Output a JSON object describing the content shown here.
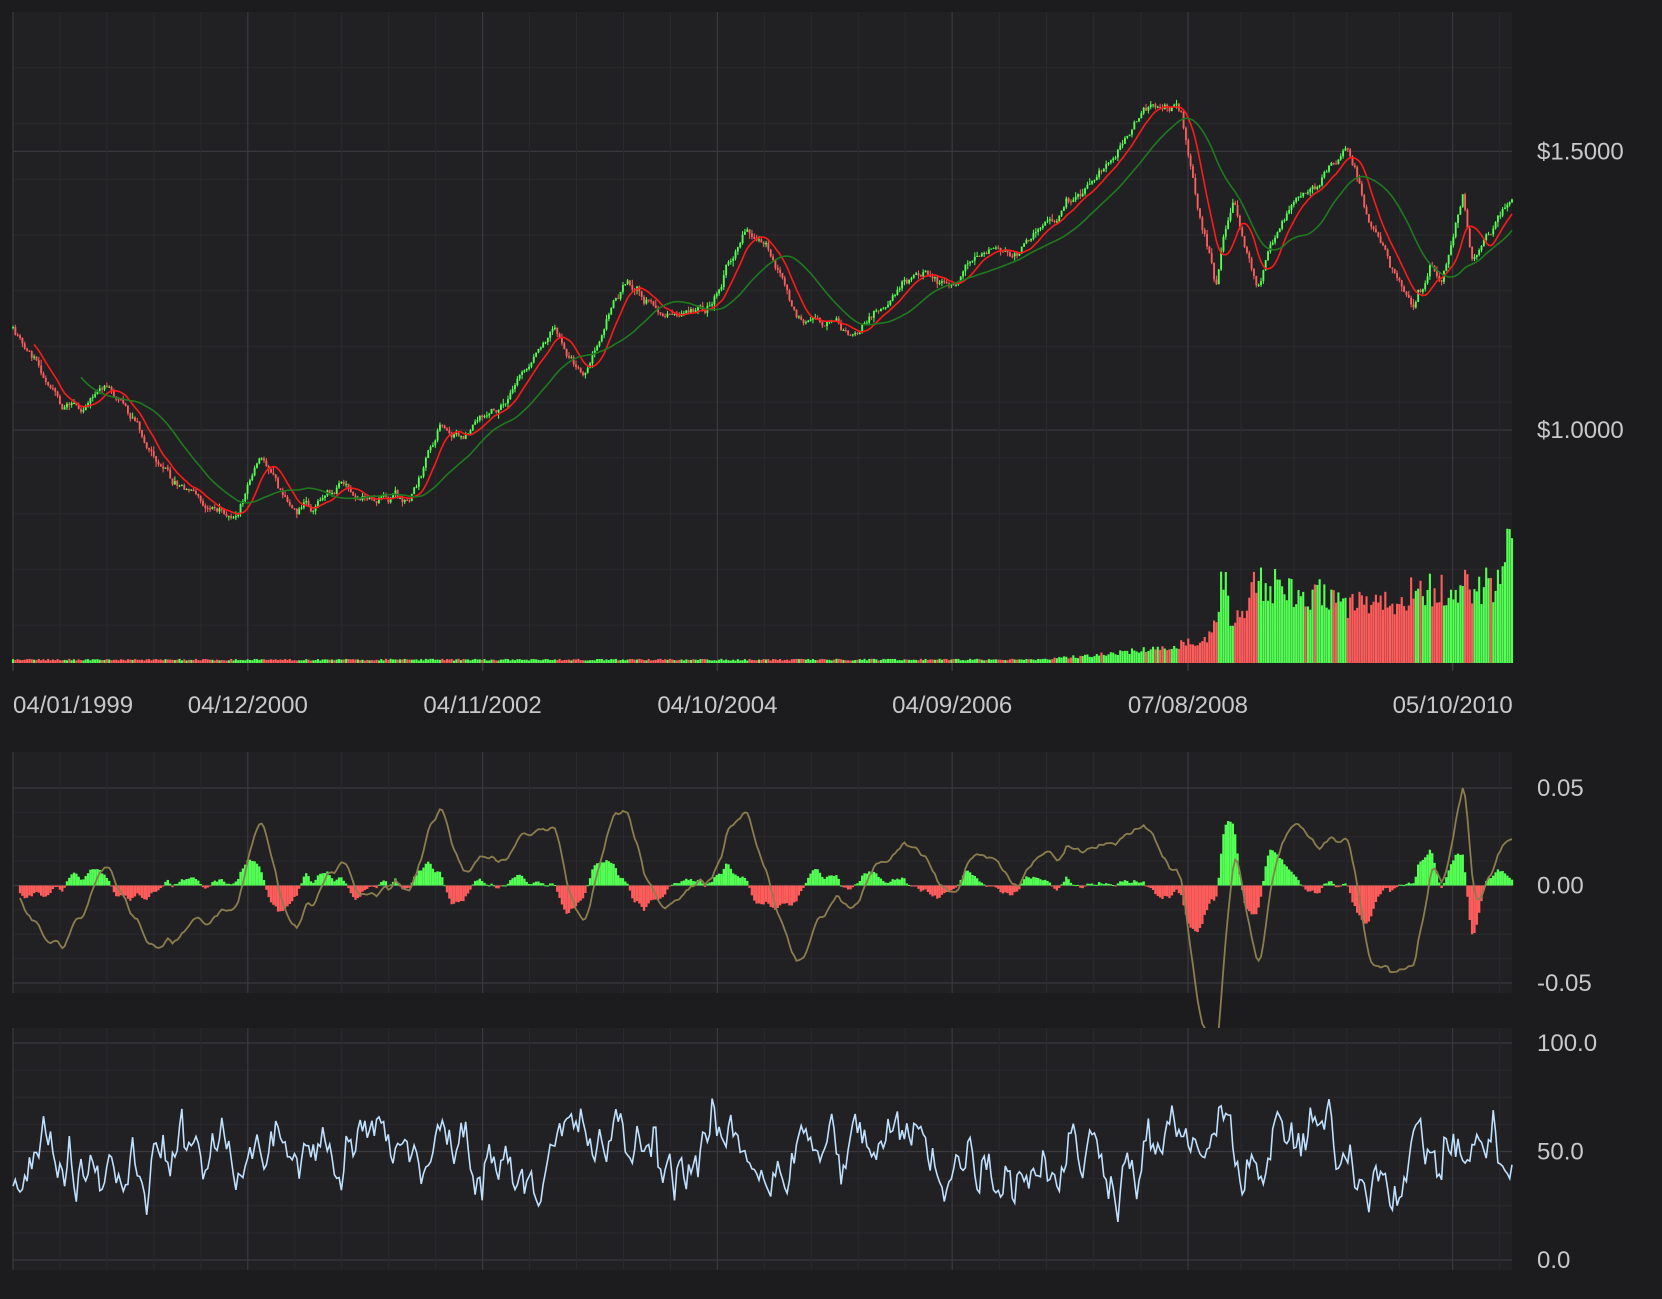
{
  "colors": {
    "background": "#1c1c1e",
    "panel": "#212124",
    "grid_major": "#3a3a3e",
    "grid_minor": "#2a2a2d",
    "label": "#c8c8c8",
    "up": "#52ff52",
    "down": "#ff5c5c",
    "sma_fast": "#ff1a1a",
    "sma_slow": "#1f7a1f",
    "macd_line": "#8a7d4e",
    "rsi": "#bfe0ff"
  },
  "chart_data": [
    {
      "type": "candlestick",
      "panel": "price",
      "series": [
        {
          "name": "",
          "kind": "ohlc"
        },
        {
          "name": "",
          "kind": "sma-fast"
        },
        {
          "name": "",
          "kind": "sma-slow"
        },
        {
          "name": "",
          "kind": "volume"
        }
      ],
      "x_range": [
        "1999-01-04",
        "2011-03-31"
      ],
      "y_range": [
        0.6,
        1.75
      ],
      "y_tick_labels": [
        "$1.5000",
        "$1.0000"
      ],
      "y_tick_values": [
        1.5,
        1.0
      ],
      "x_tick_labels": [
        "04/01/1999",
        "04/12/2000",
        "04/11/2002",
        "04/10/2004",
        "04/09/2006",
        "07/08/2008",
        "05/10/2010"
      ],
      "x_tick_dates": [
        "1999-01-04",
        "2000-12-04",
        "2002-11-04",
        "2004-10-04",
        "2006-09-04",
        "2008-08-07",
        "2010-10-05"
      ],
      "price_path": [
        [
          "1999-01-04",
          1.18
        ],
        [
          "1999-06-01",
          1.04
        ],
        [
          "1999-10-15",
          1.07
        ],
        [
          "2000-02-01",
          0.98
        ],
        [
          "2000-05-15",
          0.9
        ],
        [
          "2000-10-20",
          0.84
        ],
        [
          "2001-01-05",
          0.95
        ],
        [
          "2001-04-01",
          0.88
        ],
        [
          "2001-06-15",
          0.85
        ],
        [
          "2001-09-15",
          0.91
        ],
        [
          "2001-11-01",
          0.88
        ],
        [
          "2002-04-01",
          0.87
        ],
        [
          "2002-06-30",
          1.0
        ],
        [
          "2002-09-01",
          0.98
        ],
        [
          "2003-01-01",
          1.05
        ],
        [
          "2003-05-30",
          1.18
        ],
        [
          "2003-09-01",
          1.1
        ],
        [
          "2004-01-01",
          1.27
        ],
        [
          "2004-05-01",
          1.2
        ],
        [
          "2004-09-01",
          1.22
        ],
        [
          "2004-12-30",
          1.36
        ],
        [
          "2005-03-01",
          1.32
        ],
        [
          "2005-06-01",
          1.21
        ],
        [
          "2005-11-15",
          1.17
        ],
        [
          "2006-01-15",
          1.21
        ],
        [
          "2006-05-15",
          1.28
        ],
        [
          "2006-09-15",
          1.27
        ],
        [
          "2006-12-30",
          1.33
        ],
        [
          "2007-03-01",
          1.32
        ],
        [
          "2007-07-15",
          1.38
        ],
        [
          "2007-12-01",
          1.47
        ],
        [
          "2008-04-15",
          1.59
        ],
        [
          "2008-07-15",
          1.57
        ],
        [
          "2008-10-28",
          1.26
        ],
        [
          "2008-12-20",
          1.41
        ],
        [
          "2009-03-01",
          1.26
        ],
        [
          "2009-06-01",
          1.4
        ],
        [
          "2009-11-25",
          1.5
        ],
        [
          "2010-02-01",
          1.37
        ],
        [
          "2010-06-07",
          1.2
        ],
        [
          "2010-08-01",
          1.3
        ],
        [
          "2010-09-01",
          1.27
        ],
        [
          "2010-11-04",
          1.42
        ],
        [
          "2010-12-01",
          1.3
        ],
        [
          "2011-03-31",
          1.42
        ]
      ],
      "volume_levels": [
        [
          "1999-01-04",
          0.02
        ],
        [
          "2007-06-01",
          0.02
        ],
        [
          "2008-01-01",
          0.06
        ],
        [
          "2008-07-01",
          0.1
        ],
        [
          "2008-10-20",
          0.16
        ],
        [
          "2008-11-20",
          0.58
        ],
        [
          "2008-12-15",
          0.22
        ],
        [
          "2009-03-01",
          0.5
        ],
        [
          "2009-05-01",
          0.46
        ],
        [
          "2009-09-01",
          0.4
        ],
        [
          "2010-01-01",
          0.34
        ],
        [
          "2010-05-01",
          0.4
        ],
        [
          "2010-08-01",
          0.46
        ],
        [
          "2011-01-01",
          0.44
        ],
        [
          "2011-03-01",
          0.52
        ],
        [
          "2011-03-20",
          1.0
        ],
        [
          "2011-03-31",
          0.8
        ]
      ]
    },
    {
      "type": "bar-line",
      "panel": "macd",
      "series": [
        {
          "name": "",
          "kind": "histogram"
        },
        {
          "name": "",
          "kind": "line"
        }
      ],
      "y_range": [
        -0.05,
        0.05
      ],
      "y_tick_labels": [
        "0.05",
        "0.00",
        "-0.05"
      ],
      "y_tick_values": [
        0.05,
        0.0,
        -0.05
      ]
    },
    {
      "type": "line",
      "panel": "rsi",
      "series": [
        {
          "name": "",
          "kind": "line"
        }
      ],
      "y_range": [
        0,
        100
      ],
      "y_tick_labels": [
        "100.0",
        "50.0",
        "0.0"
      ],
      "y_tick_values": [
        100,
        50,
        0
      ]
    }
  ]
}
